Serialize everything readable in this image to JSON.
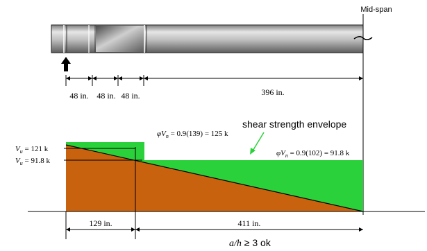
{
  "beam": {
    "midspan_label": "Mid-span"
  },
  "dimensions_top": {
    "seg1": "48 in.",
    "seg2": "48 in.",
    "seg3": "48 in.",
    "seg4": "396 in."
  },
  "envelope_label": "shear strength envelope",
  "strengths": {
    "high_prefix": "φV",
    "high_sub": "n",
    "high_expr": " = 0.9(139) = 125 k",
    "low_prefix": "φV",
    "low_sub": "n",
    "low_expr": " = 0.9(102) = 91.8 k"
  },
  "demand": {
    "vu1_prefix": "V",
    "vu1_sub": "u",
    "vu1_value": " = 121 k",
    "vu2_prefix": "V",
    "vu2_sub": "u",
    "vu2_value": " = 91.8 k"
  },
  "dimensions_bottom": {
    "left": "129 in.",
    "right": "411 in."
  },
  "ratio_note": {
    "prefix": "a/h",
    "rest": " ≥ 3 ok"
  },
  "colors": {
    "envelope_green": "#2bd13a",
    "demand_orange": "#c8620e",
    "beam_gray": "#b3b3b3"
  }
}
